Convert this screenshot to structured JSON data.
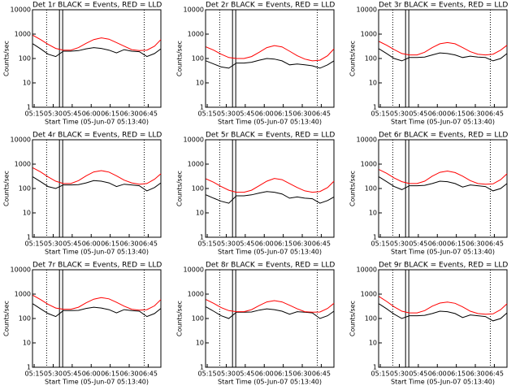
{
  "chart_data": [
    {
      "type": "line",
      "title": "Det 1r BLACK = Events, RED = LLD",
      "ylabel": "Counts/sec",
      "xlabel": "Start Time (05-Jun-07 05:13:40)",
      "log_y": true,
      "ylim": [
        1,
        10000
      ],
      "yticks": [
        1,
        10,
        100,
        1000,
        10000
      ],
      "xlim": [
        13.67,
        115
      ],
      "xticks": [
        {
          "value": 15,
          "label": "05:15"
        },
        {
          "value": 30,
          "label": "05:30"
        },
        {
          "value": 45,
          "label": "05:45"
        },
        {
          "value": 60,
          "label": "06:00"
        },
        {
          "value": 75,
          "label": "06:15"
        },
        {
          "value": 90,
          "label": "06:30"
        },
        {
          "value": 105,
          "label": "06:45"
        }
      ],
      "x": [
        14,
        20,
        26,
        32,
        38,
        44,
        50,
        56,
        62,
        68,
        74,
        80,
        86,
        92,
        98,
        104,
        110,
        115
      ],
      "series": [
        {
          "color": "#000000",
          "values": [
            400,
            250,
            150,
            120,
            200,
            200,
            210,
            250,
            280,
            260,
            220,
            170,
            230,
            200,
            190,
            120,
            160,
            250
          ]
        },
        {
          "color": "#ff0000",
          "values": [
            900,
            600,
            380,
            260,
            220,
            220,
            280,
            420,
            600,
            700,
            620,
            450,
            320,
            230,
            210,
            220,
            320,
            600
          ]
        }
      ]
    },
    {
      "type": "line",
      "title": "Det 2r BLACK = Events, RED = LLD",
      "ylabel": "Counts/sec",
      "xlabel": "Start Time (05-Jun-07 05:13:40)",
      "log_y": true,
      "ylim": [
        1,
        10000
      ],
      "yticks": [
        1,
        10,
        100,
        1000,
        10000
      ],
      "xlim": [
        13.67,
        115
      ],
      "xticks": [
        {
          "value": 15,
          "label": "05:15"
        },
        {
          "value": 30,
          "label": "05:30"
        },
        {
          "value": 45,
          "label": "05:45"
        },
        {
          "value": 60,
          "label": "06:00"
        },
        {
          "value": 75,
          "label": "06:15"
        },
        {
          "value": 90,
          "label": "06:30"
        },
        {
          "value": 105,
          "label": "06:45"
        }
      ],
      "x": [
        14,
        20,
        26,
        32,
        38,
        44,
        50,
        56,
        62,
        68,
        74,
        80,
        86,
        92,
        98,
        104,
        110,
        115
      ],
      "series": [
        {
          "color": "#000000",
          "values": [
            80,
            60,
            45,
            40,
            65,
            65,
            70,
            85,
            100,
            95,
            80,
            55,
            60,
            55,
            50,
            40,
            55,
            80
          ]
        },
        {
          "color": "#ff0000",
          "values": [
            300,
            220,
            150,
            110,
            100,
            100,
            120,
            180,
            280,
            340,
            300,
            200,
            130,
            95,
            80,
            85,
            130,
            250
          ]
        }
      ]
    },
    {
      "type": "line",
      "title": "Det 3r BLACK = Events, RED = LLD",
      "ylabel": "Counts/sec",
      "xlabel": "Start Time (05-Jun-07 05:13:40)",
      "log_y": true,
      "ylim": [
        1,
        10000
      ],
      "yticks": [
        1,
        10,
        100,
        1000,
        10000
      ],
      "xlim": [
        13.67,
        115
      ],
      "xticks": [
        {
          "value": 15,
          "label": "05:15"
        },
        {
          "value": 30,
          "label": "05:30"
        },
        {
          "value": 45,
          "label": "05:45"
        },
        {
          "value": 60,
          "label": "06:00"
        },
        {
          "value": 75,
          "label": "06:15"
        },
        {
          "value": 90,
          "label": "06:30"
        },
        {
          "value": 105,
          "label": "06:45"
        }
      ],
      "x": [
        14,
        20,
        26,
        32,
        38,
        44,
        50,
        56,
        62,
        68,
        74,
        80,
        86,
        92,
        98,
        104,
        110,
        115
      ],
      "series": [
        {
          "color": "#000000",
          "values": [
            250,
            160,
            100,
            80,
            110,
            110,
            115,
            140,
            170,
            160,
            140,
            110,
            125,
            115,
            110,
            80,
            100,
            160
          ]
        },
        {
          "color": "#ff0000",
          "values": [
            500,
            350,
            230,
            160,
            140,
            140,
            180,
            280,
            400,
            450,
            400,
            280,
            190,
            150,
            140,
            150,
            220,
            350
          ]
        }
      ]
    },
    {
      "type": "line",
      "title": "Det 4r BLACK = Events, RED = LLD",
      "ylabel": "Counts/sec",
      "xlabel": "Start Time (05-Jun-07 05:13:40)",
      "log_y": true,
      "ylim": [
        1,
        10000
      ],
      "yticks": [
        1,
        10,
        100,
        1000,
        10000
      ],
      "xlim": [
        13.67,
        115
      ],
      "xticks": [
        {
          "value": 15,
          "label": "05:15"
        },
        {
          "value": 30,
          "label": "05:30"
        },
        {
          "value": 45,
          "label": "05:45"
        },
        {
          "value": 60,
          "label": "06:00"
        },
        {
          "value": 75,
          "label": "06:15"
        },
        {
          "value": 90,
          "label": "06:30"
        },
        {
          "value": 105,
          "label": "06:45"
        }
      ],
      "x": [
        14,
        20,
        26,
        32,
        38,
        44,
        50,
        56,
        62,
        68,
        74,
        80,
        86,
        92,
        98,
        104,
        110,
        115
      ],
      "series": [
        {
          "color": "#000000",
          "values": [
            300,
            190,
            120,
            100,
            140,
            140,
            145,
            170,
            210,
            200,
            170,
            120,
            150,
            140,
            130,
            80,
            110,
            170
          ]
        },
        {
          "color": "#ff0000",
          "values": [
            700,
            480,
            300,
            200,
            160,
            160,
            210,
            330,
            480,
            540,
            470,
            330,
            220,
            170,
            150,
            160,
            240,
            400
          ]
        }
      ]
    },
    {
      "type": "line",
      "title": "Det 5r BLACK = Events, RED = LLD",
      "ylabel": "Counts/sec",
      "xlabel": "Start Time (05-Jun-07 05:13:40)",
      "log_y": true,
      "ylim": [
        1,
        10000
      ],
      "yticks": [
        1,
        10,
        100,
        1000,
        10000
      ],
      "xlim": [
        13.67,
        115
      ],
      "xticks": [
        {
          "value": 15,
          "label": "05:15"
        },
        {
          "value": 30,
          "label": "05:30"
        },
        {
          "value": 45,
          "label": "05:45"
        },
        {
          "value": 60,
          "label": "06:00"
        },
        {
          "value": 75,
          "label": "06:15"
        },
        {
          "value": 90,
          "label": "06:30"
        },
        {
          "value": 105,
          "label": "06:45"
        }
      ],
      "x": [
        14,
        20,
        26,
        32,
        38,
        44,
        50,
        56,
        62,
        68,
        74,
        80,
        86,
        92,
        98,
        104,
        110,
        115
      ],
      "series": [
        {
          "color": "#000000",
          "values": [
            55,
            40,
            30,
            25,
            50,
            50,
            55,
            65,
            75,
            70,
            60,
            40,
            45,
            40,
            38,
            25,
            32,
            45
          ]
        },
        {
          "color": "#ff0000",
          "values": [
            250,
            180,
            120,
            85,
            70,
            70,
            85,
            130,
            200,
            260,
            230,
            160,
            110,
            80,
            70,
            75,
            110,
            200
          ]
        }
      ]
    },
    {
      "type": "line",
      "title": "Det 6r BLACK = Events, RED = LLD",
      "ylabel": "Counts/sec",
      "xlabel": "Start Time (05-Jun-07 05:13:40)",
      "log_y": true,
      "ylim": [
        1,
        10000
      ],
      "yticks": [
        1,
        10,
        100,
        1000,
        10000
      ],
      "xlim": [
        13.67,
        115
      ],
      "xticks": [
        {
          "value": 15,
          "label": "05:15"
        },
        {
          "value": 30,
          "label": "05:30"
        },
        {
          "value": 45,
          "label": "05:45"
        },
        {
          "value": 60,
          "label": "06:00"
        },
        {
          "value": 75,
          "label": "06:15"
        },
        {
          "value": 90,
          "label": "06:30"
        },
        {
          "value": 105,
          "label": "06:45"
        }
      ],
      "x": [
        14,
        20,
        26,
        32,
        38,
        44,
        50,
        56,
        62,
        68,
        74,
        80,
        86,
        92,
        98,
        104,
        110,
        115
      ],
      "series": [
        {
          "color": "#000000",
          "values": [
            300,
            190,
            120,
            90,
            130,
            130,
            135,
            160,
            200,
            190,
            160,
            115,
            140,
            130,
            120,
            80,
            100,
            160
          ]
        },
        {
          "color": "#ff0000",
          "values": [
            600,
            420,
            270,
            190,
            160,
            160,
            200,
            320,
            460,
            520,
            450,
            320,
            210,
            160,
            150,
            155,
            230,
            400
          ]
        }
      ]
    },
    {
      "type": "line",
      "title": "Det 7r BLACK = Events, RED = LLD",
      "ylabel": "Counts/sec",
      "xlabel": "Start Time (05-Jun-07 05:13:40)",
      "log_y": true,
      "ylim": [
        1,
        10000
      ],
      "yticks": [
        1,
        10,
        100,
        1000,
        10000
      ],
      "xlim": [
        13.67,
        115
      ],
      "xticks": [
        {
          "value": 15,
          "label": "05:15"
        },
        {
          "value": 30,
          "label": "05:30"
        },
        {
          "value": 45,
          "label": "05:45"
        },
        {
          "value": 60,
          "label": "06:00"
        },
        {
          "value": 75,
          "label": "06:15"
        },
        {
          "value": 90,
          "label": "06:30"
        },
        {
          "value": 105,
          "label": "06:45"
        }
      ],
      "x": [
        14,
        20,
        26,
        32,
        38,
        44,
        50,
        56,
        62,
        68,
        74,
        80,
        86,
        92,
        98,
        104,
        110,
        115
      ],
      "series": [
        {
          "color": "#000000",
          "values": [
            400,
            250,
            160,
            120,
            210,
            210,
            215,
            260,
            290,
            270,
            230,
            170,
            230,
            210,
            200,
            120,
            160,
            260
          ]
        },
        {
          "color": "#ff0000",
          "values": [
            900,
            600,
            380,
            270,
            240,
            240,
            290,
            440,
            620,
            720,
            640,
            460,
            320,
            240,
            220,
            230,
            330,
            600
          ]
        }
      ]
    },
    {
      "type": "line",
      "title": "Det 8r BLACK = Events, RED = LLD",
      "ylabel": "Counts/sec",
      "xlabel": "Start Time (05-Jun-07 05:13:40)",
      "log_y": true,
      "ylim": [
        1,
        10000
      ],
      "yticks": [
        1,
        10,
        100,
        1000,
        10000
      ],
      "xlim": [
        13.67,
        115
      ],
      "xticks": [
        {
          "value": 15,
          "label": "05:15"
        },
        {
          "value": 30,
          "label": "05:30"
        },
        {
          "value": 45,
          "label": "05:45"
        },
        {
          "value": 60,
          "label": "06:00"
        },
        {
          "value": 75,
          "label": "06:15"
        },
        {
          "value": 90,
          "label": "06:30"
        },
        {
          "value": 105,
          "label": "06:45"
        }
      ],
      "x": [
        14,
        20,
        26,
        32,
        38,
        44,
        50,
        56,
        62,
        68,
        74,
        80,
        86,
        92,
        98,
        104,
        110,
        115
      ],
      "series": [
        {
          "color": "#000000",
          "values": [
            300,
            200,
            130,
            100,
            180,
            180,
            185,
            220,
            250,
            230,
            200,
            150,
            190,
            180,
            170,
            100,
            130,
            200
          ]
        },
        {
          "color": "#ff0000",
          "values": [
            600,
            420,
            280,
            210,
            190,
            190,
            230,
            340,
            480,
            540,
            480,
            350,
            250,
            190,
            180,
            185,
            260,
            420
          ]
        }
      ]
    },
    {
      "type": "line",
      "title": "Det 9r BLACK = Events, RED = LLD",
      "ylabel": "Counts/sec",
      "xlabel": "Start Time (05-Jun-07 05:13:40)",
      "log_y": true,
      "ylim": [
        1,
        10000
      ],
      "yticks": [
        1,
        10,
        100,
        1000,
        10000
      ],
      "xlim": [
        13.67,
        115
      ],
      "xticks": [
        {
          "value": 15,
          "label": "05:15"
        },
        {
          "value": 30,
          "label": "05:30"
        },
        {
          "value": 45,
          "label": "05:45"
        },
        {
          "value": 60,
          "label": "06:00"
        },
        {
          "value": 75,
          "label": "06:15"
        },
        {
          "value": 90,
          "label": "06:30"
        },
        {
          "value": 105,
          "label": "06:45"
        }
      ],
      "x": [
        14,
        20,
        26,
        32,
        38,
        44,
        50,
        56,
        62,
        68,
        74,
        80,
        86,
        92,
        98,
        104,
        110,
        115
      ],
      "series": [
        {
          "color": "#000000",
          "values": [
            400,
            250,
            150,
            100,
            130,
            130,
            135,
            160,
            200,
            190,
            160,
            110,
            140,
            130,
            120,
            80,
            100,
            170
          ]
        },
        {
          "color": "#ff0000",
          "values": [
            800,
            500,
            300,
            200,
            170,
            170,
            210,
            320,
            430,
            470,
            420,
            300,
            200,
            160,
            150,
            155,
            230,
            400
          ]
        }
      ]
    }
  ]
}
